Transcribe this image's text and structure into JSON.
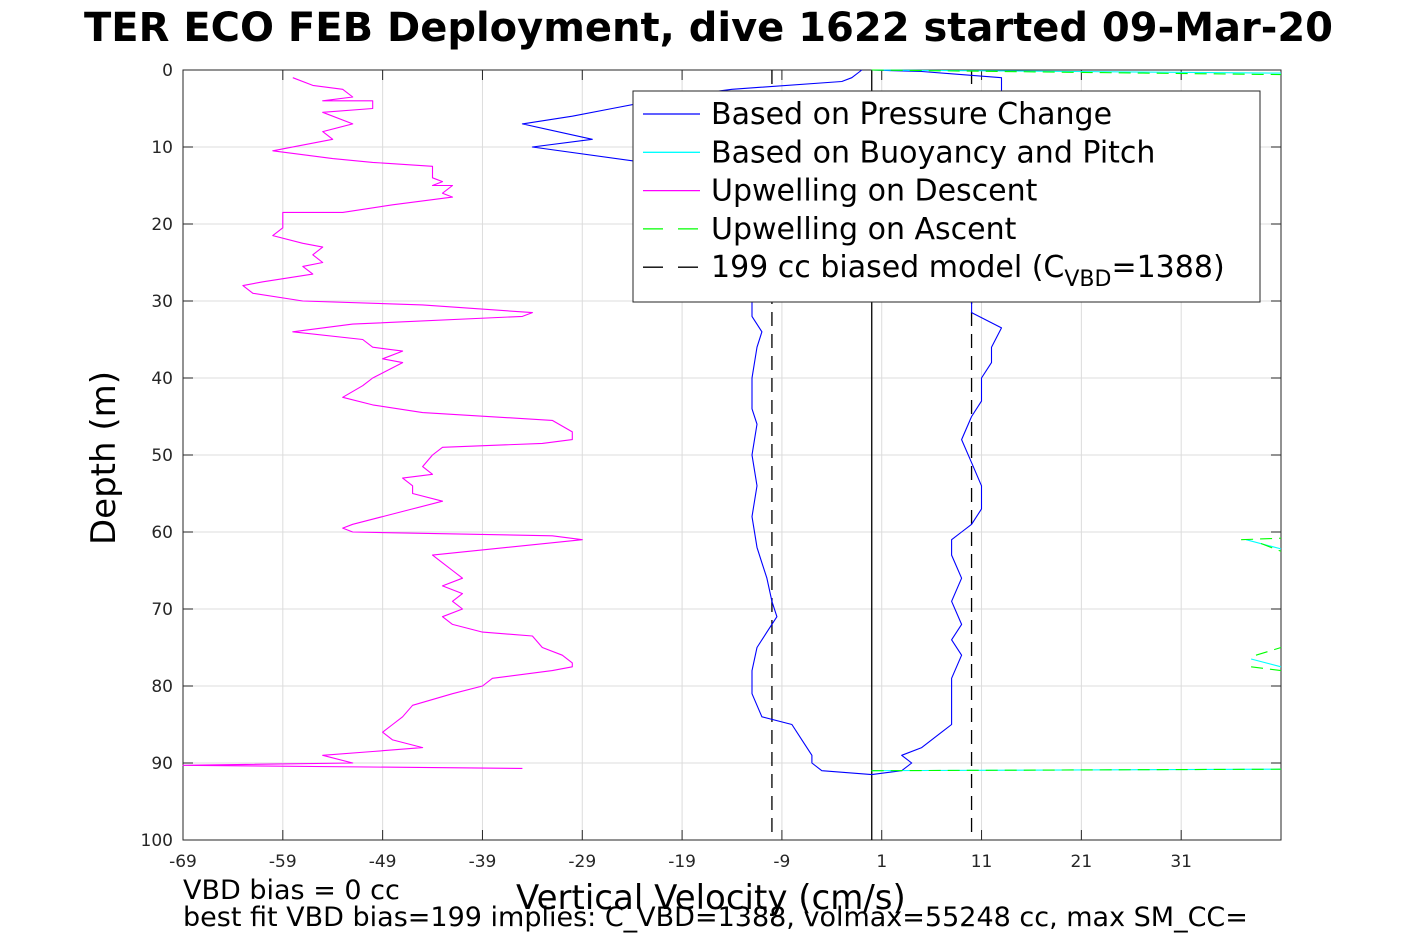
{
  "title": "TER ECO FEB Deployment, dive 1622 started 09-Mar-20",
  "footer": {
    "line1": "VBD bias = 0 cc",
    "line2": "best fit VBD bias=199 implies: C_VBD=1388, volmax=55248 cc, max SM_CC="
  },
  "chart_data": {
    "type": "line",
    "xlabel": "Vertical Velocity (cm/s)",
    "ylabel": "Depth (m)",
    "xlim": [
      -69,
      41
    ],
    "ylim": [
      0,
      100
    ],
    "y_reversed": true,
    "grid": true,
    "xticks": [
      -69,
      -59,
      -49,
      -39,
      -29,
      -19,
      -9,
      1,
      11,
      21,
      31
    ],
    "yticks": [
      0,
      10,
      20,
      30,
      40,
      50,
      60,
      70,
      80,
      90,
      100
    ],
    "legend": {
      "placement": "top-right",
      "entries": [
        {
          "label": "Based on Pressure Change",
          "color": "#0000ff",
          "dash": "solid"
        },
        {
          "label": "Based on Buoyancy and Pitch",
          "color": "#00ffff",
          "dash": "solid"
        },
        {
          "label": "Upwelling on Descent",
          "color": "#ff00ff",
          "dash": "solid"
        },
        {
          "label": "Upwelling on Ascent",
          "color": "#00ff00",
          "dash": "dashed"
        },
        {
          "label": "199 cc biased model (C",
          "sub": "VBD",
          "suffix": "=1388)",
          "color": "#000000",
          "dash": "dashed"
        }
      ]
    },
    "reference_lines": [
      {
        "name": "zero-velocity",
        "x": 0,
        "color": "#000000",
        "dash": "solid"
      },
      {
        "name": "biased-model-descent",
        "x": -10,
        "color": "#000000",
        "dash": "dashed"
      },
      {
        "name": "biased-model-ascent",
        "x": 10,
        "color": "#000000",
        "dash": "dashed"
      }
    ],
    "series": [
      {
        "name": "Based on Pressure Change",
        "color": "#0000ff",
        "dash": "solid",
        "points": [
          [
            -1,
            0
          ],
          [
            -2,
            1
          ],
          [
            -3,
            1.5
          ],
          [
            -14,
            2.5
          ],
          [
            -20,
            3.5
          ],
          [
            -26,
            5
          ],
          [
            -30,
            6
          ],
          [
            -35,
            7
          ],
          [
            -28,
            9
          ],
          [
            -34,
            10
          ],
          [
            -20,
            12.5
          ],
          [
            -12,
            14.5
          ],
          [
            -11,
            16
          ],
          [
            -11,
            20
          ],
          [
            -11,
            25
          ],
          [
            -12,
            28
          ],
          [
            -12,
            32
          ],
          [
            -11,
            34
          ],
          [
            -11.5,
            36
          ],
          [
            -12,
            40
          ],
          [
            -12,
            44
          ],
          [
            -11.5,
            46
          ],
          [
            -12,
            50
          ],
          [
            -11.5,
            54
          ],
          [
            -12,
            58
          ],
          [
            -11.5,
            62
          ],
          [
            -11,
            64
          ],
          [
            -10.5,
            66
          ],
          [
            -10,
            69
          ],
          [
            -9.5,
            71
          ],
          [
            -10.5,
            73
          ],
          [
            -11.5,
            75
          ],
          [
            -12,
            78
          ],
          [
            -12,
            81
          ],
          [
            -11,
            84
          ],
          [
            -8,
            85
          ],
          [
            -7,
            87
          ],
          [
            -6,
            89
          ],
          [
            -6,
            90
          ],
          [
            -5,
            91
          ],
          [
            0,
            91.5
          ],
          [
            3,
            91
          ],
          [
            4,
            90
          ],
          [
            3,
            89
          ],
          [
            5,
            88
          ],
          [
            7,
            86
          ],
          [
            8,
            85
          ],
          [
            8,
            82
          ],
          [
            8,
            79
          ],
          [
            9,
            76
          ],
          [
            8,
            74
          ],
          [
            9,
            72
          ],
          [
            8,
            69
          ],
          [
            9,
            66
          ],
          [
            8,
            63
          ],
          [
            8,
            61
          ],
          [
            9,
            60
          ],
          [
            10,
            59
          ],
          [
            11,
            57
          ],
          [
            11,
            54
          ],
          [
            10,
            51
          ],
          [
            9,
            48
          ],
          [
            10,
            45
          ],
          [
            11,
            43
          ],
          [
            11,
            40
          ],
          [
            12,
            38
          ],
          [
            12,
            36
          ],
          [
            13,
            33.5
          ],
          [
            10,
            31.5
          ],
          [
            10,
            29
          ],
          [
            10,
            25
          ],
          [
            9,
            21
          ],
          [
            9,
            19
          ],
          [
            10,
            16
          ],
          [
            11,
            13
          ],
          [
            11,
            10
          ],
          [
            12,
            8
          ],
          [
            12,
            6
          ],
          [
            13,
            3.5
          ],
          [
            13,
            1
          ],
          [
            8,
            0.5
          ],
          [
            5,
            0.2
          ],
          [
            0,
            0
          ]
        ]
      },
      {
        "name": "Based on Buoyancy and Pitch",
        "color": "#00ffff",
        "dash": "solid",
        "points": [
          [
            0,
            0
          ],
          [
            20,
            0.2
          ],
          [
            41,
            0.4
          ],
          [
            null,
            null
          ],
          [
            37.5,
            61
          ],
          [
            41,
            62.2
          ],
          [
            null,
            null
          ],
          [
            38,
            76.5
          ],
          [
            41,
            77.5
          ],
          [
            null,
            null
          ],
          [
            0,
            91
          ],
          [
            41,
            90.8
          ]
        ]
      },
      {
        "name": "Upwelling on Descent",
        "color": "#ff00ff",
        "dash": "solid",
        "points": [
          [
            -58,
            1
          ],
          [
            -56,
            2
          ],
          [
            -53,
            2.5
          ],
          [
            -52,
            3.5
          ],
          [
            -55,
            4
          ],
          [
            -50,
            4
          ],
          [
            -50,
            5
          ],
          [
            -55,
            5.5
          ],
          [
            -52,
            7
          ],
          [
            -55,
            8
          ],
          [
            -54,
            9
          ],
          [
            -60,
            10.5
          ],
          [
            -57,
            11
          ],
          [
            -54,
            11.5
          ],
          [
            -50,
            12
          ],
          [
            -44,
            12.5
          ],
          [
            -44,
            14
          ],
          [
            -43,
            14.5
          ],
          [
            -44,
            15
          ],
          [
            -42,
            15
          ],
          [
            -43,
            16
          ],
          [
            -42,
            16.5
          ],
          [
            -48,
            17.5
          ],
          [
            -53,
            18.5
          ],
          [
            -59,
            18.5
          ],
          [
            -59,
            20.5
          ],
          [
            -60,
            21.5
          ],
          [
            -57,
            22.5
          ],
          [
            -55,
            23
          ],
          [
            -56,
            24
          ],
          [
            -55,
            25
          ],
          [
            -57,
            25.5
          ],
          [
            -56,
            26.5
          ],
          [
            -61,
            27.5
          ],
          [
            -63,
            28
          ],
          [
            -62,
            29
          ],
          [
            -57,
            30
          ],
          [
            -45,
            30.5
          ],
          [
            -34,
            31.5
          ],
          [
            -35,
            32
          ],
          [
            -52,
            33
          ],
          [
            -58,
            34
          ],
          [
            -51,
            35
          ],
          [
            -50,
            36
          ],
          [
            -47,
            36.5
          ],
          [
            -49,
            37.5
          ],
          [
            -47,
            38
          ],
          [
            -50,
            40
          ],
          [
            -51,
            41
          ],
          [
            -53,
            42.5
          ],
          [
            -50,
            43.5
          ],
          [
            -45,
            44.5
          ],
          [
            -32,
            45.5
          ],
          [
            -30,
            47
          ],
          [
            -30,
            48
          ],
          [
            -33,
            48.5
          ],
          [
            -43,
            49
          ],
          [
            -44,
            50
          ],
          [
            -45,
            51.5
          ],
          [
            -44,
            52.5
          ],
          [
            -47,
            53
          ],
          [
            -46,
            54
          ],
          [
            -46,
            55
          ],
          [
            -43,
            56
          ],
          [
            -46,
            57
          ],
          [
            -49,
            58
          ],
          [
            -52,
            59
          ],
          [
            -53,
            59.5
          ],
          [
            -52,
            60
          ],
          [
            -32,
            60.5
          ],
          [
            -29,
            61
          ],
          [
            -44,
            63
          ],
          [
            -43,
            64
          ],
          [
            -42,
            65
          ],
          [
            -41,
            66
          ],
          [
            -43,
            67
          ],
          [
            -41,
            68
          ],
          [
            -42,
            69
          ],
          [
            -41,
            70
          ],
          [
            -43,
            71
          ],
          [
            -42,
            72
          ],
          [
            -39,
            73
          ],
          [
            -34,
            73.5
          ],
          [
            -33,
            75
          ],
          [
            -31,
            76
          ],
          [
            -30,
            77
          ],
          [
            -30,
            77.5
          ],
          [
            -32,
            78
          ],
          [
            -38,
            79
          ],
          [
            -39,
            80
          ],
          [
            -42,
            81
          ],
          [
            -46,
            82.5
          ],
          [
            -47,
            84
          ],
          [
            -48,
            85
          ],
          [
            -49,
            86
          ],
          [
            -48,
            87
          ],
          [
            -45,
            88
          ],
          [
            -50,
            88.5
          ],
          [
            -55,
            89
          ],
          [
            -52,
            90
          ],
          [
            -69,
            90.3
          ],
          [
            -35,
            90.7
          ]
        ]
      },
      {
        "name": "Upwelling on Ascent",
        "color": "#00ff00",
        "dash": "dashed",
        "points": [
          [
            0,
            0
          ],
          [
            20,
            0.3
          ],
          [
            41,
            0.6
          ],
          [
            null,
            null
          ],
          [
            37,
            61
          ],
          [
            41,
            60.8
          ],
          [
            null,
            null
          ],
          [
            39,
            61.5
          ],
          [
            41,
            62.5
          ],
          [
            null,
            null
          ],
          [
            38.5,
            76
          ],
          [
            41,
            75
          ],
          [
            null,
            null
          ],
          [
            38,
            77.5
          ],
          [
            41,
            78
          ],
          [
            null,
            null
          ],
          [
            0,
            91
          ],
          [
            41,
            90.8
          ]
        ]
      }
    ]
  }
}
